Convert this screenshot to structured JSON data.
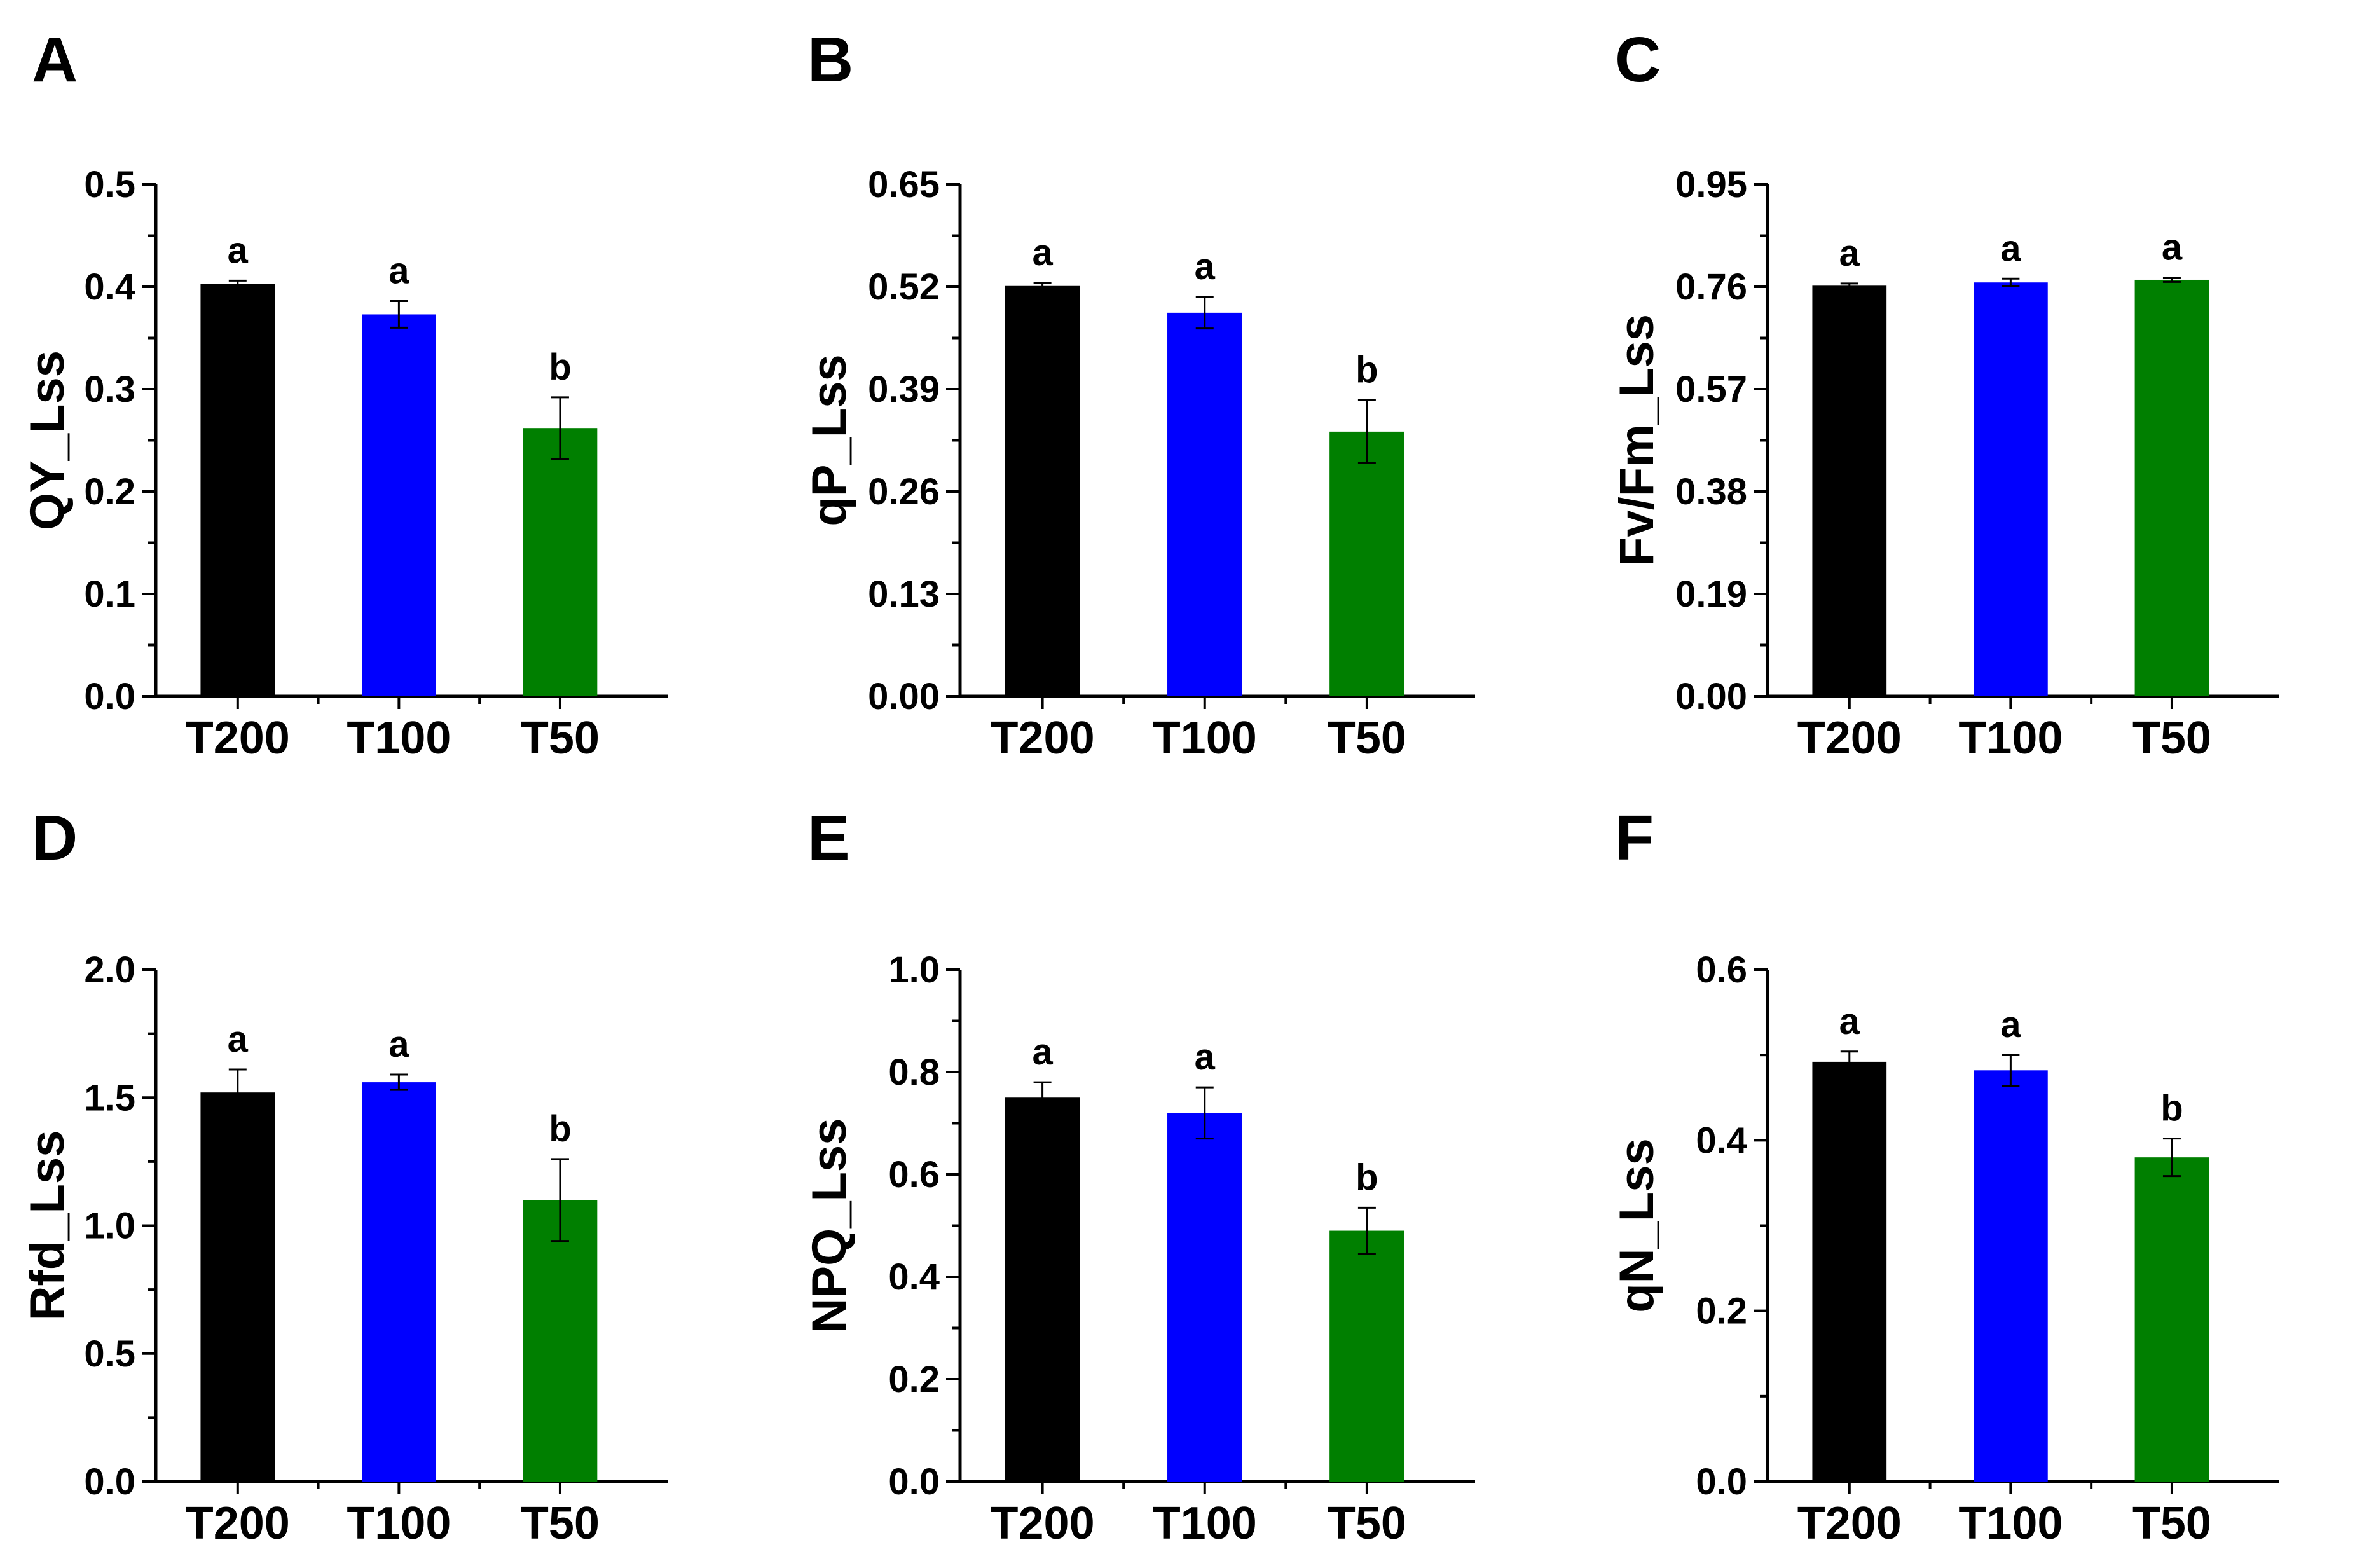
{
  "chart_data": [
    {
      "type": "bar",
      "panel": "A",
      "categories": [
        "T200",
        "T100",
        "T50"
      ],
      "values": [
        0.403,
        0.373,
        0.262
      ],
      "errors": [
        0.003,
        0.013,
        0.03
      ],
      "significance": [
        "a",
        "a",
        "b"
      ],
      "colors": [
        "#000000",
        "#0000ff",
        "#007f00"
      ],
      "ylabel": "QY_Lss",
      "ylim": [
        0,
        0.5
      ],
      "yticks": [
        "0.0",
        "0.1",
        "0.2",
        "0.3",
        "0.4",
        "0.5"
      ]
    },
    {
      "type": "bar",
      "panel": "B",
      "categories": [
        "T200",
        "T100",
        "T50"
      ],
      "values": [
        0.521,
        0.487,
        0.336
      ],
      "errors": [
        0.004,
        0.02,
        0.04
      ],
      "significance": [
        "a",
        "a",
        "b"
      ],
      "colors": [
        "#000000",
        "#0000ff",
        "#007f00"
      ],
      "ylabel": "qP_Lss",
      "ylim": [
        0,
        0.65
      ],
      "yticks": [
        "0.00",
        "0.13",
        "0.26",
        "0.39",
        "0.52",
        "0.65"
      ]
    },
    {
      "type": "bar",
      "panel": "C",
      "categories": [
        "T200",
        "T100",
        "T50"
      ],
      "values": [
        0.762,
        0.768,
        0.773
      ],
      "errors": [
        0.004,
        0.007,
        0.004
      ],
      "significance": [
        "a",
        "a",
        "a"
      ],
      "colors": [
        "#000000",
        "#0000ff",
        "#007f00"
      ],
      "ylabel": "Fv/Fm_Lss",
      "ylim": [
        0,
        0.95
      ],
      "yticks": [
        "0.00",
        "0.19",
        "0.38",
        "0.57",
        "0.76",
        "0.95"
      ]
    },
    {
      "type": "bar",
      "panel": "D",
      "categories": [
        "T200",
        "T100",
        "T50"
      ],
      "values": [
        1.52,
        1.56,
        1.1
      ],
      "errors": [
        0.09,
        0.03,
        0.16
      ],
      "significance": [
        "a",
        "a",
        "b"
      ],
      "colors": [
        "#000000",
        "#0000ff",
        "#007f00"
      ],
      "ylabel": "Rfd_Lss",
      "ylim": [
        0,
        2.0
      ],
      "yticks": [
        "0.0",
        "0.5",
        "1.0",
        "1.5",
        "2.0"
      ]
    },
    {
      "type": "bar",
      "panel": "E",
      "categories": [
        "T200",
        "T100",
        "T50"
      ],
      "values": [
        0.75,
        0.72,
        0.49
      ],
      "errors": [
        0.03,
        0.05,
        0.045
      ],
      "significance": [
        "a",
        "a",
        "b"
      ],
      "colors": [
        "#000000",
        "#0000ff",
        "#007f00"
      ],
      "ylabel": "NPQ_Lss",
      "ylim": [
        0,
        1.0
      ],
      "yticks": [
        "0.0",
        "0.2",
        "0.4",
        "0.6",
        "0.8",
        "1.0"
      ]
    },
    {
      "type": "bar",
      "panel": "F",
      "categories": [
        "T200",
        "T100",
        "T50"
      ],
      "values": [
        0.492,
        0.482,
        0.38
      ],
      "errors": [
        0.012,
        0.018,
        0.022
      ],
      "significance": [
        "a",
        "a",
        "b"
      ],
      "colors": [
        "#000000",
        "#0000ff",
        "#007f00"
      ],
      "ylabel": "qN_Lss",
      "ylim": [
        0,
        0.6
      ],
      "yticks": [
        "0.0",
        "0.2",
        "0.4",
        "0.6"
      ]
    }
  ]
}
